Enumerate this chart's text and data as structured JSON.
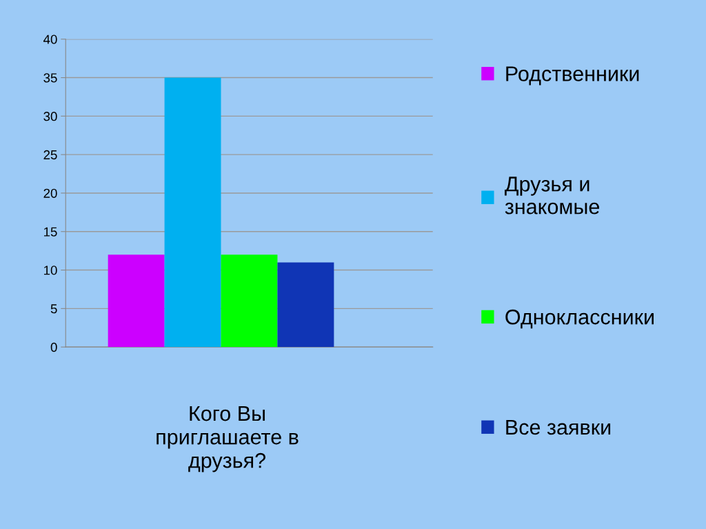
{
  "chart_data": {
    "type": "bar",
    "xlabel": "Кого Вы приглашаете в друзья?",
    "categories": [
      null
    ],
    "series": [
      {
        "name": "Родственники",
        "color": "#cc00ff",
        "values": [
          12
        ]
      },
      {
        "name": "Друзья и знакомые",
        "color": "#00b0f0",
        "values": [
          35
        ]
      },
      {
        "name": "Одноклассники",
        "color": "#00ff00",
        "values": [
          12
        ]
      },
      {
        "name": "Все заявки",
        "color": "#1035b5",
        "values": [
          11
        ]
      }
    ],
    "ylim": [
      0,
      40
    ],
    "yticks": [
      0,
      5,
      10,
      15,
      20,
      25,
      30,
      35,
      40
    ],
    "grid": "y",
    "legend": "right"
  }
}
